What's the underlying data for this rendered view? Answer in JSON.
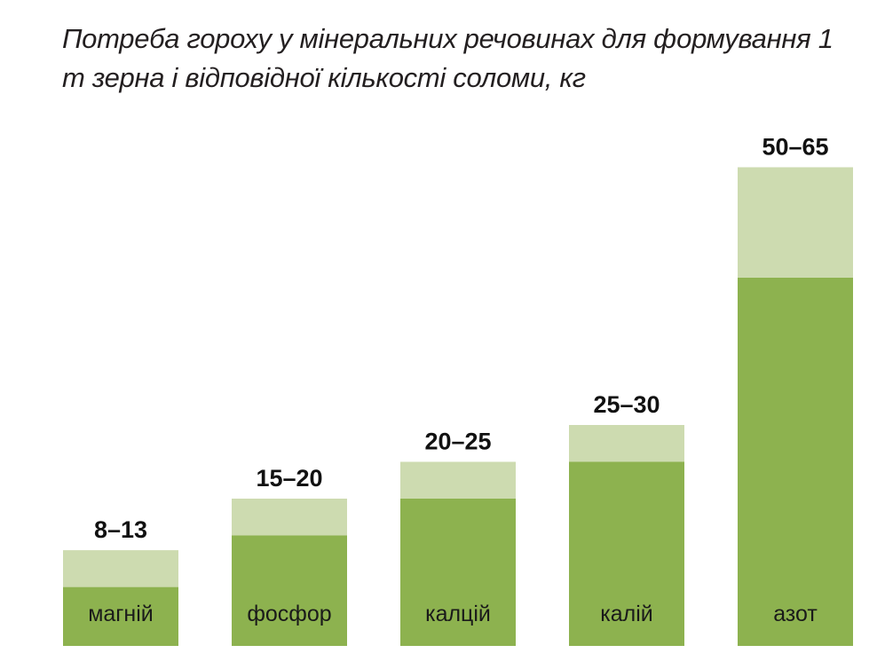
{
  "chart_data": {
    "type": "bar",
    "stacked": true,
    "title": "Потреба гороху у мінеральних речовинах для формування 1 т зерна і відповідної кількості соломи, кг",
    "categories": [
      "магній",
      "фосфор",
      "калцій",
      "калій",
      "азот"
    ],
    "range_min": [
      8,
      15,
      20,
      25,
      50
    ],
    "range_max": [
      13,
      20,
      25,
      30,
      65
    ],
    "value_labels": [
      "8–13",
      "15–20",
      "20–25",
      "25–30",
      "50–65"
    ],
    "colors": {
      "min_part": "#8db24f",
      "range_part": "#cddbb0"
    },
    "grid": false,
    "legend": "none"
  }
}
